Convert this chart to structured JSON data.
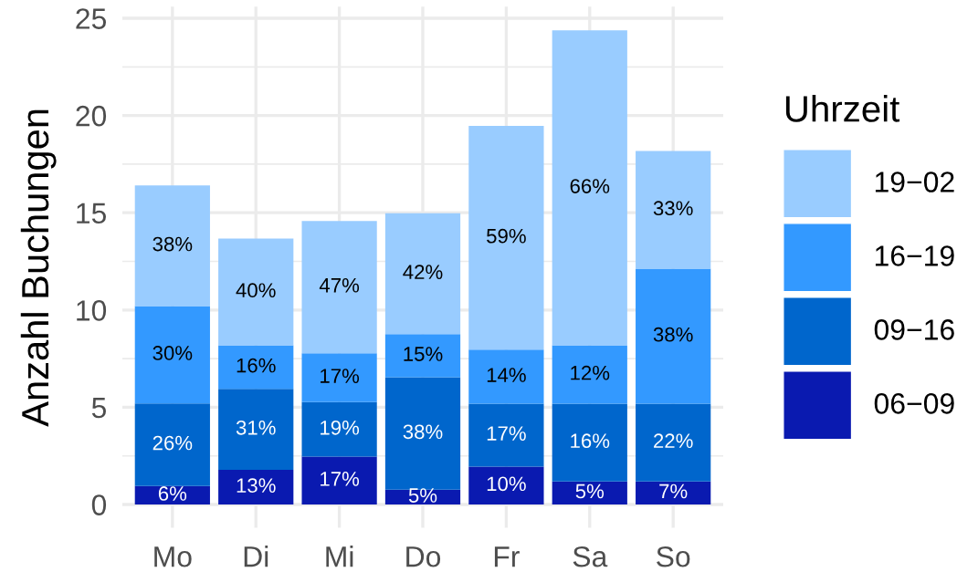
{
  "chart_data": {
    "type": "bar",
    "ylabel": "Anzahl Buchungen",
    "legend_title": "Uhrzeit",
    "categories": [
      "Mo",
      "Di",
      "Mi",
      "Do",
      "Fr",
      "Sa",
      "So"
    ],
    "stacked": true,
    "series": [
      {
        "name": "06−09",
        "color": "#0a1ab0",
        "values": [
          0.95,
          1.78,
          2.46,
          0.76,
          1.95,
          1.19,
          1.19
        ]
      },
      {
        "name": "09−16",
        "color": "#0066cc",
        "values": [
          4.25,
          4.16,
          2.8,
          5.78,
          3.23,
          3.99,
          3.99
        ]
      },
      {
        "name": "16−19",
        "color": "#3399ff",
        "values": [
          5.0,
          2.24,
          2.52,
          2.22,
          2.78,
          3.0,
          6.94
        ]
      },
      {
        "name": "19−02",
        "color": "#99ccff",
        "values": [
          6.2,
          5.49,
          6.8,
          6.21,
          11.51,
          16.2,
          6.05
        ]
      }
    ],
    "annotations": [
      "6%",
      "26%",
      "30%",
      "38%",
      "13%",
      "31%",
      "16%",
      "40%",
      "17%",
      "19%",
      "17%",
      "47%",
      "5%",
      "38%",
      "15%",
      "42%",
      "10%",
      "17%",
      "14%",
      "59%",
      "5%",
      "16%",
      "12%",
      "66%",
      "7%",
      "22%",
      "38%",
      "33%"
    ],
    "ylim": [
      -1.2,
      25.6
    ],
    "yticks": [
      0,
      5,
      10,
      15,
      20,
      25
    ],
    "grid": true,
    "legend": "right"
  }
}
